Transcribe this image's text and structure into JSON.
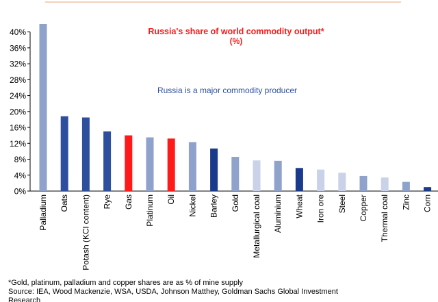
{
  "chart_data": {
    "type": "bar",
    "title": "Russia's share of world commodity output*",
    "subtitle": "(%)",
    "annotation": "Russia is a major commodity producer",
    "xlabel": "",
    "ylabel": "",
    "ylim": [
      0,
      42
    ],
    "y_ticks": [
      "0%",
      "4%",
      "8%",
      "12%",
      "16%",
      "20%",
      "24%",
      "28%",
      "32%",
      "36%",
      "40%"
    ],
    "y_tick_values": [
      0,
      4,
      8,
      12,
      16,
      20,
      24,
      28,
      32,
      36,
      40
    ],
    "grid": false,
    "legend": "none",
    "categories": [
      "Palladium",
      "Oats",
      "Potash (KCl content)",
      "Rye",
      "Gas",
      "Platinum",
      "Oil",
      "Nickel",
      "Barley",
      "Gold",
      "Metallurgical coal",
      "Aluminium",
      "Wheat",
      "Iron ore",
      "Steel",
      "Copper",
      "Thermal coal",
      "Zinc",
      "Corn"
    ],
    "values": [
      42.0,
      18.8,
      18.5,
      15.0,
      14.0,
      13.5,
      13.2,
      12.3,
      10.7,
      8.6,
      7.7,
      7.6,
      5.8,
      5.4,
      4.6,
      3.8,
      3.4,
      2.3,
      1.0
    ],
    "bar_colors": [
      "#8ea2cc",
      "#2d4f9e",
      "#2d4f9e",
      "#2d4f9e",
      "#ff1a1a",
      "#8ea2cc",
      "#ff1a1a",
      "#8ea2cc",
      "#1a3a8c",
      "#8ea2cc",
      "#c9d2e8",
      "#8ea2cc",
      "#1a3a8c",
      "#c9d2e8",
      "#c9d2e8",
      "#8ea2cc",
      "#c9d2e8",
      "#8ea2cc",
      "#1a3a8c"
    ],
    "title_color": "#ff1a1a",
    "annotation_color": "#2d4f9e",
    "header_rule_color": "#e8a07a"
  },
  "footnotes": {
    "note": "*Gold, platinum, palladium and copper shares are as % of mine supply",
    "source": "Source: IEA, Wood Mackenzie, WSA, USDA, Johnson Matthey, Goldman Sachs Global Investment",
    "source_cont": "Research"
  }
}
